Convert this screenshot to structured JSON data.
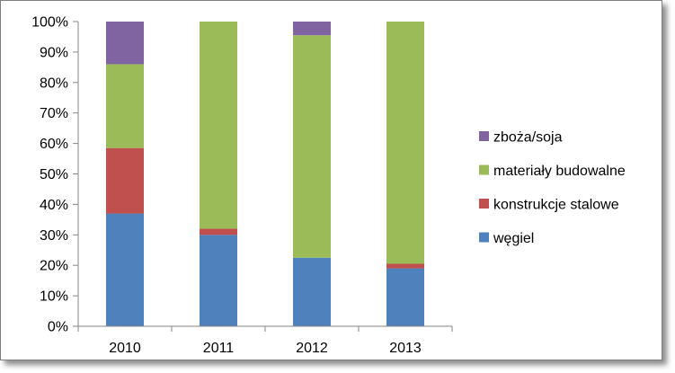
{
  "chart_data": {
    "type": "bar",
    "stacked": true,
    "percent": true,
    "categories": [
      "2010",
      "2011",
      "2012",
      "2013"
    ],
    "series": [
      {
        "name": "węgiel",
        "color": "#4f81bd",
        "values": [
          37,
          30,
          22.5,
          19
        ]
      },
      {
        "name": "konstrukcje stalowe",
        "color": "#c0504d",
        "values": [
          21.5,
          2,
          0,
          1.5
        ]
      },
      {
        "name": "materiały budowalne",
        "color": "#9bbb59",
        "values": [
          27.5,
          68,
          73,
          79.5
        ]
      },
      {
        "name": "zboża/soja",
        "color": "#8064a2",
        "values": [
          14,
          0,
          4.5,
          0
        ]
      }
    ],
    "ylim": [
      0,
      100
    ],
    "yticks": [
      "0%",
      "10%",
      "20%",
      "30%",
      "40%",
      "50%",
      "60%",
      "70%",
      "80%",
      "90%",
      "100%"
    ],
    "legend": {
      "placement": "right",
      "entries": [
        "zboża/soja",
        "materiały budowalne",
        "konstrukcje stalowe",
        "węgiel"
      ]
    },
    "grid": false
  }
}
